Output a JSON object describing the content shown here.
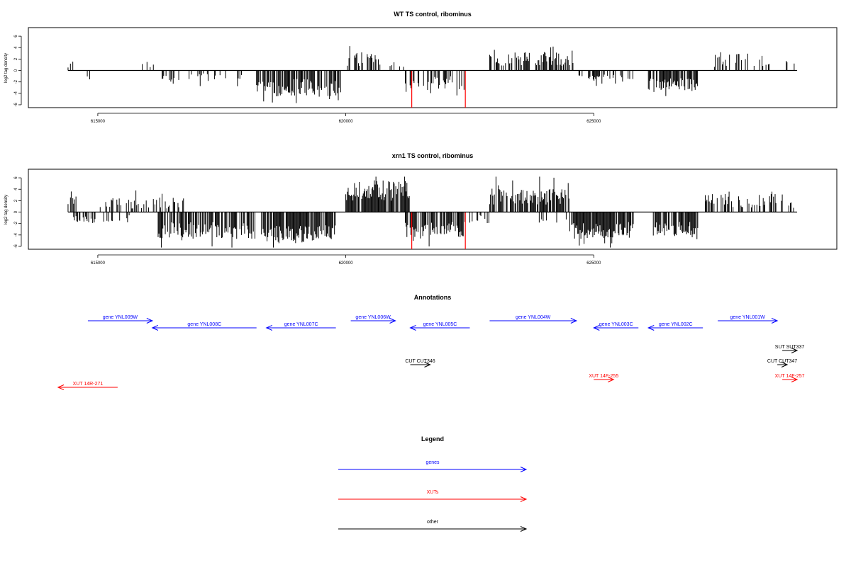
{
  "colors": {
    "gene": "#0000ff",
    "xut": "#ff0000",
    "other": "#000000",
    "peak": "#ff0000"
  },
  "chart_data": [
    {
      "type": "bar",
      "title": "WT TS control, ribominus",
      "ylabel": "log2 tag density",
      "xlim": [
        613600,
        629900
      ],
      "ylim": [
        -6.5,
        7.5
      ],
      "xticks": [
        615000,
        620000,
        625000
      ],
      "xtick_labels": [
        "615000",
        "620000",
        "625000"
      ],
      "yticks": [
        -6,
        -4,
        -2,
        0,
        2,
        4,
        6
      ],
      "ytick_labels": [
        "-6",
        "-4",
        "-2",
        "0",
        "2",
        "4",
        "6"
      ],
      "density_regions": [
        {
          "start": 614400,
          "end": 614500,
          "sign": 1,
          "mean": 1.2,
          "amp": 0.7,
          "density": 0.5
        },
        {
          "start": 614500,
          "end": 615000,
          "sign": -1,
          "mean": 1.1,
          "amp": 0.8,
          "density": 0.05
        },
        {
          "start": 615800,
          "end": 616200,
          "sign": 1,
          "mean": 1.2,
          "amp": 0.8,
          "density": 0.25
        },
        {
          "start": 616200,
          "end": 618000,
          "sign": -1,
          "mean": 1.3,
          "amp": 0.8,
          "density": 0.25
        },
        {
          "start": 618200,
          "end": 619900,
          "sign": -1,
          "mean": 3.0,
          "amp": 1.5,
          "density": 0.75
        },
        {
          "start": 620000,
          "end": 620700,
          "sign": 1,
          "mean": 2.0,
          "amp": 1.2,
          "density": 0.6
        },
        {
          "start": 620700,
          "end": 621200,
          "sign": 1,
          "mean": 1.3,
          "amp": 0.8,
          "density": 0.25
        },
        {
          "start": 621200,
          "end": 622400,
          "sign": -1,
          "mean": 2.2,
          "amp": 1.2,
          "density": 0.55
        },
        {
          "start": 622900,
          "end": 624600,
          "sign": 1,
          "mean": 2.0,
          "amp": 1.2,
          "density": 0.55
        },
        {
          "start": 624700,
          "end": 625800,
          "sign": -1,
          "mean": 1.2,
          "amp": 0.6,
          "density": 0.4
        },
        {
          "start": 626100,
          "end": 627100,
          "sign": -1,
          "mean": 2.4,
          "amp": 1.1,
          "density": 0.75
        },
        {
          "start": 627400,
          "end": 628600,
          "sign": 1,
          "mean": 1.8,
          "amp": 1.2,
          "density": 0.4
        },
        {
          "start": 628800,
          "end": 629100,
          "sign": 1,
          "mean": 1.2,
          "amp": 0.7,
          "density": 0.2
        }
      ],
      "highlight_bars": [
        {
          "x": 621330,
          "y": -6.5
        },
        {
          "x": 622410,
          "y": -6.5
        }
      ]
    },
    {
      "type": "bar",
      "title": "xrn1 TS control, ribominus",
      "ylabel": "log2 tag density",
      "xlim": [
        613600,
        629900
      ],
      "ylim": [
        -6.5,
        7.5
      ],
      "xticks": [
        615000,
        620000,
        625000
      ],
      "xtick_labels": [
        "615000",
        "620000",
        "625000"
      ],
      "yticks": [
        -6,
        -4,
        -2,
        0,
        2,
        4,
        6
      ],
      "ytick_labels": [
        "-6",
        "-4",
        "-2",
        "0",
        "2",
        "4",
        "6"
      ],
      "density_regions": [
        {
          "start": 614400,
          "end": 614600,
          "sign": 1,
          "mean": 1.8,
          "amp": 1.0,
          "density": 0.6
        },
        {
          "start": 614400,
          "end": 615700,
          "sign": -1,
          "mean": 1.3,
          "amp": 0.8,
          "density": 0.3
        },
        {
          "start": 615000,
          "end": 616800,
          "sign": 1,
          "mean": 1.6,
          "amp": 1.0,
          "density": 0.35
        },
        {
          "start": 616200,
          "end": 618200,
          "sign": -1,
          "mean": 3.2,
          "amp": 1.5,
          "density": 0.75
        },
        {
          "start": 618300,
          "end": 619800,
          "sign": -1,
          "mean": 3.8,
          "amp": 1.5,
          "density": 0.85
        },
        {
          "start": 620000,
          "end": 621300,
          "sign": 1,
          "mean": 3.8,
          "amp": 1.8,
          "density": 0.9
        },
        {
          "start": 621200,
          "end": 622400,
          "sign": -1,
          "mean": 3.2,
          "amp": 1.5,
          "density": 0.75
        },
        {
          "start": 622500,
          "end": 622900,
          "sign": -1,
          "mean": 1.2,
          "amp": 0.8,
          "density": 0.2
        },
        {
          "start": 622900,
          "end": 624500,
          "sign": 1,
          "mean": 2.8,
          "amp": 1.5,
          "density": 0.8
        },
        {
          "start": 623900,
          "end": 624600,
          "sign": -1,
          "mean": 1.2,
          "amp": 0.7,
          "density": 0.15
        },
        {
          "start": 624500,
          "end": 625800,
          "sign": -1,
          "mean": 3.2,
          "amp": 1.5,
          "density": 0.8
        },
        {
          "start": 626200,
          "end": 627100,
          "sign": -1,
          "mean": 3.0,
          "amp": 1.3,
          "density": 0.75
        },
        {
          "start": 627200,
          "end": 628800,
          "sign": 1,
          "mean": 2.0,
          "amp": 1.2,
          "density": 0.45
        },
        {
          "start": 628900,
          "end": 629100,
          "sign": 1,
          "mean": 1.2,
          "amp": 0.6,
          "density": 0.25
        }
      ],
      "highlight_bars": [
        {
          "x": 621330,
          "y": -6.5
        },
        {
          "x": 622410,
          "y": -6.5
        }
      ]
    }
  ],
  "annotations": {
    "title": "Annotations",
    "features": [
      {
        "label": "gene YNL009W",
        "start": 614800,
        "end": 616100,
        "strand": "+",
        "kind": "gene",
        "row": 0
      },
      {
        "label": "gene YNL008C",
        "start": 616100,
        "end": 618200,
        "strand": "-",
        "kind": "gene",
        "row": 1
      },
      {
        "label": "gene YNL007C",
        "start": 618400,
        "end": 619800,
        "strand": "-",
        "kind": "gene",
        "row": 1
      },
      {
        "label": "gene YNL006W",
        "start": 620100,
        "end": 621000,
        "strand": "+",
        "kind": "gene",
        "row": 0
      },
      {
        "label": "gene YNL005C",
        "start": 621300,
        "end": 622500,
        "strand": "-",
        "kind": "gene",
        "row": 1
      },
      {
        "label": "gene YNL004W",
        "start": 622900,
        "end": 624650,
        "strand": "+",
        "kind": "gene",
        "row": 0
      },
      {
        "label": "gene YNL003C",
        "start": 625000,
        "end": 625900,
        "strand": "-",
        "kind": "gene",
        "row": 1
      },
      {
        "label": "gene YNL002C",
        "start": 626100,
        "end": 627200,
        "strand": "-",
        "kind": "gene",
        "row": 1
      },
      {
        "label": "gene YNL001W",
        "start": 627500,
        "end": 628700,
        "strand": "+",
        "kind": "gene",
        "row": 0
      },
      {
        "label": "SUT SUT337",
        "start": 628800,
        "end": 629100,
        "strand": "+",
        "kind": "other",
        "row": 4
      },
      {
        "label": "CUT CUT346",
        "start": 621300,
        "end": 621700,
        "strand": "+",
        "kind": "other",
        "row": 5
      },
      {
        "label": "CUT CUT347",
        "start": 628700,
        "end": 628900,
        "strand": "+",
        "kind": "other",
        "row": 5
      },
      {
        "label": "XUT 14F-255",
        "start": 625000,
        "end": 625400,
        "strand": "+",
        "kind": "xut",
        "row": 6
      },
      {
        "label": "XUT 14F-257",
        "start": 628800,
        "end": 629100,
        "strand": "+",
        "kind": "xut",
        "row": 6
      },
      {
        "label": "XUT 14R-271",
        "start": 614200,
        "end": 615400,
        "strand": "-",
        "kind": "xut",
        "row": 7
      }
    ]
  },
  "legend": {
    "title": "Legend",
    "items": [
      {
        "label": "genes",
        "kind": "gene"
      },
      {
        "label": "XUTs",
        "kind": "xut"
      },
      {
        "label": "other",
        "kind": "other"
      }
    ]
  }
}
